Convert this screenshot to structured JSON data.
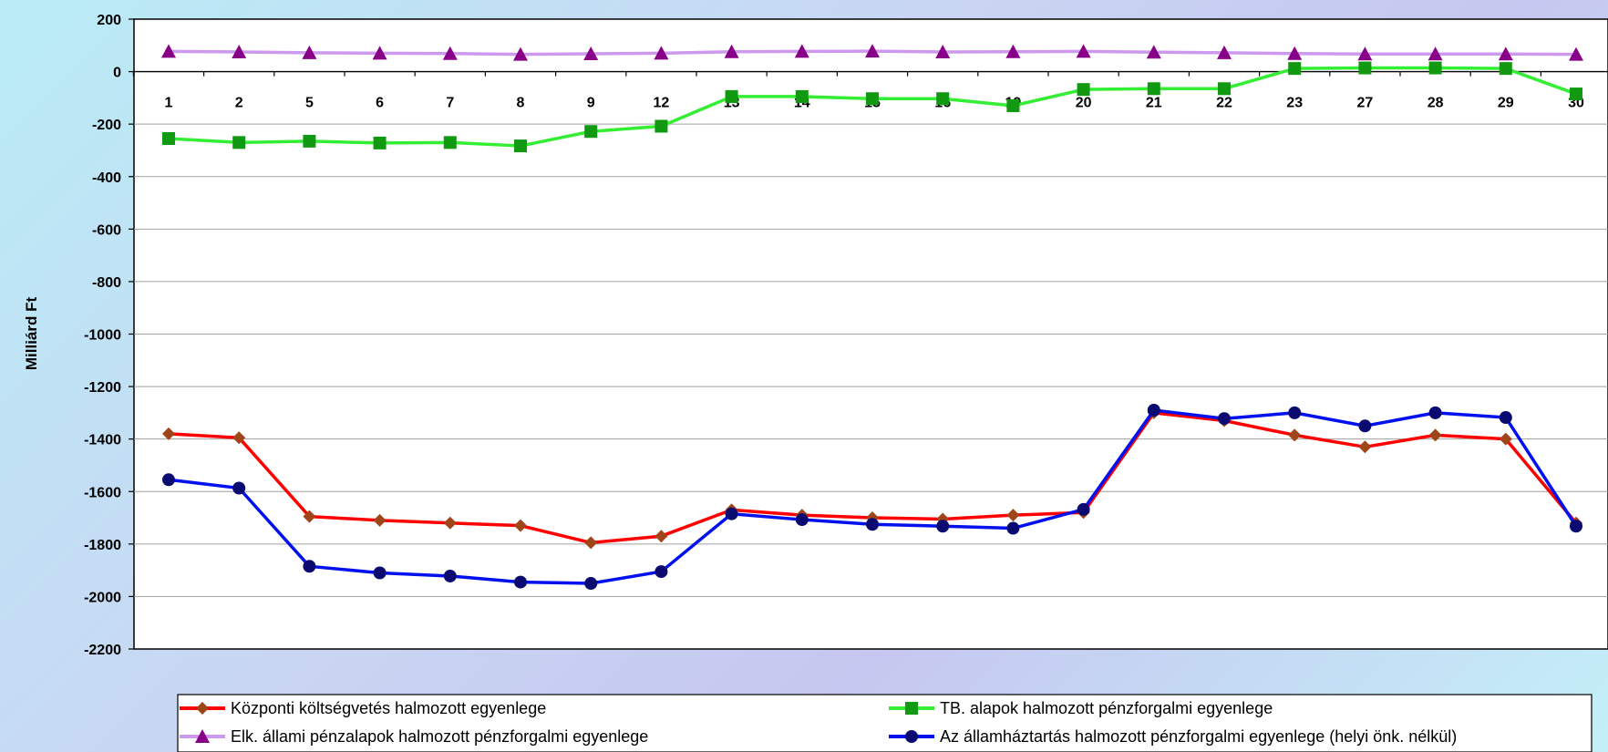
{
  "chart_data": {
    "type": "line",
    "ylabel": "Milliárd Ft",
    "xlabel": "",
    "ylim": [
      -2200,
      200
    ],
    "yticks": [
      200,
      0,
      -200,
      -400,
      -600,
      -800,
      -1000,
      -1200,
      -1400,
      -1600,
      -1800,
      -2000,
      -2200
    ],
    "grid": true,
    "legend_position": "bottom",
    "categories": [
      "1",
      "2",
      "5",
      "6",
      "7",
      "8",
      "9",
      "12",
      "13",
      "14",
      "15",
      "16",
      "19",
      "20",
      "21",
      "22",
      "23",
      "27",
      "28",
      "29",
      "30"
    ],
    "series": [
      {
        "name": "Központi költségvetés halmozott egyenlege",
        "color": "#ff0000",
        "marker": "diamond",
        "marker_color": "#a0451a",
        "values": [
          -1380,
          -1395,
          -1695,
          -1710,
          -1720,
          -1730,
          -1795,
          -1770,
          -1670,
          -1690,
          -1700,
          -1705,
          -1690,
          -1680,
          -1300,
          -1330,
          -1385,
          -1430,
          -1385,
          -1400,
          -1720
        ]
      },
      {
        "name": "TB. alapok halmozott pénzforgalmi egyenlege",
        "color": "#33ee33",
        "marker": "square",
        "marker_color": "#119911",
        "values": [
          -255,
          -270,
          -265,
          -272,
          -270,
          -283,
          -228,
          -208,
          -95,
          -95,
          -103,
          -103,
          -130,
          -68,
          -65,
          -65,
          12,
          14,
          14,
          12,
          -85
        ]
      },
      {
        "name": "Elk. állami pénzalapok halmozott pénzforgalmi egyenlege",
        "color": "#cc99ee",
        "marker": "triangle",
        "marker_color": "#880088",
        "values": [
          77,
          75,
          72,
          70,
          69,
          66,
          68,
          70,
          76,
          77,
          78,
          75,
          76,
          77,
          74,
          72,
          69,
          67,
          67,
          67,
          66
        ]
      },
      {
        "name": "Az államháztartás halmozott pénzforgalmi egyenlege (helyi önk. nélkül)",
        "color": "#0011ee",
        "marker": "circle",
        "marker_color": "#0a0a70",
        "values": [
          -1555,
          -1587,
          -1885,
          -1910,
          -1922,
          -1945,
          -1950,
          -1905,
          -1685,
          -1707,
          -1725,
          -1732,
          -1740,
          -1668,
          -1290,
          -1322,
          -1300,
          -1350,
          -1300,
          -1318,
          -1732
        ]
      }
    ]
  }
}
